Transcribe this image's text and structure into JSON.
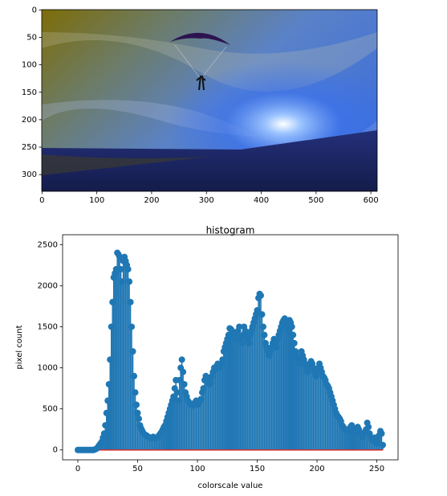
{
  "chart_data": [
    {
      "type": "image",
      "xlim": [
        -0.5,
        611.5
      ],
      "ylim": [
        330.5,
        -0.5
      ],
      "xticks": [
        0,
        100,
        200,
        300,
        400,
        500,
        600
      ],
      "yticks": [
        0,
        50,
        100,
        150,
        200,
        250,
        300
      ]
    },
    {
      "type": "stem",
      "title": "histogram",
      "x_label": "colorscale value",
      "y_label": "pixel count",
      "color": "#1f77b4",
      "baseline_color": "#d62728",
      "xlim": [
        -12.75,
        267.75
      ],
      "ylim": [
        -120,
        2620
      ],
      "xticks": [
        0,
        50,
        100,
        150,
        200,
        250
      ],
      "yticks": [
        0,
        500,
        1000,
        1500,
        2000,
        2500
      ],
      "x": [
        0,
        1,
        2,
        3,
        4,
        5,
        6,
        7,
        8,
        9,
        10,
        11,
        12,
        13,
        14,
        15,
        16,
        17,
        18,
        19,
        20,
        21,
        22,
        23,
        24,
        25,
        26,
        27,
        28,
        29,
        30,
        31,
        32,
        33,
        34,
        35,
        36,
        37,
        38,
        39,
        40,
        41,
        42,
        43,
        44,
        45,
        46,
        47,
        48,
        49,
        50,
        51,
        52,
        53,
        54,
        55,
        56,
        57,
        58,
        59,
        60,
        61,
        62,
        63,
        64,
        65,
        66,
        67,
        68,
        69,
        70,
        71,
        72,
        73,
        74,
        75,
        76,
        77,
        78,
        79,
        80,
        81,
        82,
        83,
        84,
        85,
        86,
        87,
        88,
        89,
        90,
        91,
        92,
        93,
        94,
        95,
        96,
        97,
        98,
        99,
        100,
        101,
        102,
        103,
        104,
        105,
        106,
        107,
        108,
        109,
        110,
        111,
        112,
        113,
        114,
        115,
        116,
        117,
        118,
        119,
        120,
        121,
        122,
        123,
        124,
        125,
        126,
        127,
        128,
        129,
        130,
        131,
        132,
        133,
        134,
        135,
        136,
        137,
        138,
        139,
        140,
        141,
        142,
        143,
        144,
        145,
        146,
        147,
        148,
        149,
        150,
        151,
        152,
        153,
        154,
        155,
        156,
        157,
        158,
        159,
        160,
        161,
        162,
        163,
        164,
        165,
        166,
        167,
        168,
        169,
        170,
        171,
        172,
        173,
        174,
        175,
        176,
        177,
        178,
        179,
        180,
        181,
        182,
        183,
        184,
        185,
        186,
        187,
        188,
        189,
        190,
        191,
        192,
        193,
        194,
        195,
        196,
        197,
        198,
        199,
        200,
        201,
        202,
        203,
        204,
        205,
        206,
        207,
        208,
        209,
        210,
        211,
        212,
        213,
        214,
        215,
        216,
        217,
        218,
        219,
        220,
        221,
        222,
        223,
        224,
        225,
        226,
        227,
        228,
        229,
        230,
        231,
        232,
        233,
        234,
        235,
        236,
        237,
        238,
        239,
        240,
        241,
        242,
        243,
        244,
        245,
        246,
        247,
        248,
        249,
        250,
        251,
        252,
        253,
        254,
        255
      ],
      "values": [
        0,
        0,
        0,
        0,
        0,
        0,
        0,
        0,
        0,
        0,
        0,
        0,
        0,
        0,
        5,
        10,
        20,
        40,
        60,
        80,
        100,
        150,
        200,
        300,
        450,
        600,
        800,
        1100,
        1500,
        1800,
        2100,
        2150,
        2200,
        2400,
        2380,
        2350,
        2200,
        2050,
        2300,
        2350,
        2300,
        2250,
        2200,
        2050,
        1800,
        1500,
        1200,
        900,
        700,
        550,
        450,
        380,
        300,
        260,
        230,
        200,
        190,
        180,
        170,
        160,
        150,
        140,
        150,
        160,
        150,
        140,
        150,
        160,
        180,
        200,
        220,
        250,
        280,
        300,
        350,
        400,
        450,
        500,
        550,
        600,
        650,
        750,
        850,
        700,
        600,
        850,
        1000,
        1100,
        950,
        800,
        700,
        650,
        600,
        580,
        560,
        550,
        540,
        560,
        580,
        600,
        550,
        560,
        600,
        620,
        700,
        750,
        850,
        900,
        880,
        850,
        800,
        820,
        900,
        950,
        1000,
        980,
        1020,
        1050,
        1000,
        1020,
        1050,
        1100,
        1200,
        1250,
        1300,
        1350,
        1400,
        1480,
        1470,
        1450,
        1400,
        1380,
        1350,
        1400,
        1450,
        1500,
        1350,
        1300,
        1400,
        1500,
        1450,
        1400,
        1350,
        1300,
        1400,
        1450,
        1500,
        1550,
        1600,
        1650,
        1700,
        1850,
        1900,
        1880,
        1650,
        1500,
        1400,
        1300,
        1250,
        1200,
        1150,
        1200,
        1250,
        1300,
        1350,
        1300,
        1250,
        1350,
        1400,
        1450,
        1500,
        1550,
        1580,
        1600,
        1550,
        1500,
        1450,
        1580,
        1550,
        1500,
        1400,
        1300,
        1200,
        1150,
        1100,
        1050,
        1100,
        1200,
        1150,
        1100,
        1050,
        1000,
        950,
        1000,
        1050,
        1080,
        1050,
        1000,
        950,
        900,
        950,
        1000,
        1050,
        1000,
        950,
        900,
        880,
        850,
        800,
        780,
        750,
        700,
        650,
        600,
        550,
        500,
        450,
        420,
        400,
        380,
        350,
        300,
        280,
        260,
        250,
        240,
        230,
        250,
        280,
        300,
        250,
        220,
        200,
        230,
        280,
        250,
        200,
        180,
        160,
        200,
        220,
        250,
        330,
        280,
        200,
        150,
        120,
        130,
        150,
        100,
        80,
        120,
        180,
        230,
        200,
        60
      ]
    }
  ]
}
